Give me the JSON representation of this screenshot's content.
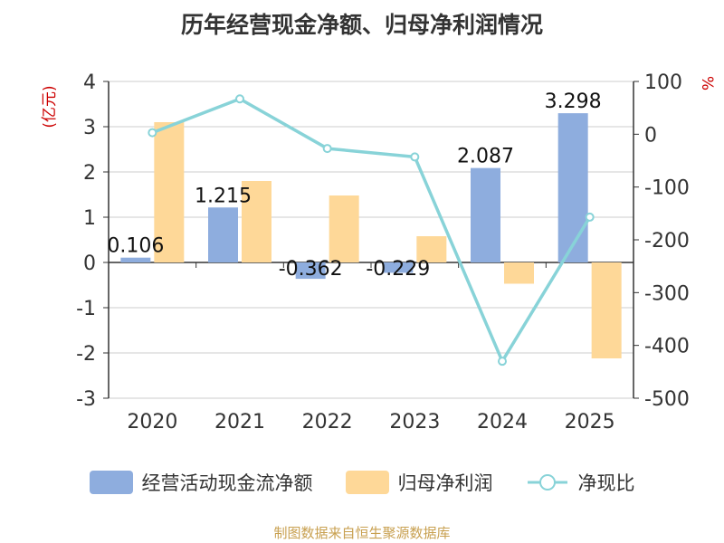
{
  "title": "历年经营现金净额、归母净利润情况",
  "source": "制图数据来自恒生聚源数据库",
  "colors": {
    "cash_flow": "#8eadde",
    "net_profit": "#fed898",
    "ratio": "#88d3d8",
    "axis_unit": "#cc0000"
  },
  "chart_data": {
    "type": "bar",
    "categories": [
      "2020",
      "2021",
      "2022",
      "2023",
      "2024",
      "2025"
    ],
    "series": [
      {
        "name": "经营活动现金流净额",
        "type": "bar",
        "axis": "left",
        "values": [
          0.106,
          1.215,
          -0.362,
          -0.229,
          2.087,
          3.298
        ],
        "data_labels": [
          "0.106",
          "1.215",
          "-0.362",
          "-0.229",
          "2.087",
          "3.298"
        ]
      },
      {
        "name": "归母净利润",
        "type": "bar",
        "axis": "left",
        "values": [
          3.1,
          1.8,
          1.48,
          0.58,
          -0.47,
          -2.12
        ]
      },
      {
        "name": "净现比",
        "type": "line",
        "axis": "right",
        "values": [
          3,
          67,
          -27,
          -43,
          -430,
          -157
        ]
      }
    ],
    "left_axis": {
      "label": "(亿元)",
      "ylim": [
        -3,
        4
      ],
      "ticks": [
        "4",
        "3",
        "2",
        "1",
        "0",
        "-1",
        "-2",
        "-3"
      ]
    },
    "right_axis": {
      "label": "%",
      "ylim": [
        -500,
        100
      ],
      "ticks": [
        "100",
        "0",
        "-100",
        "-200",
        "-300",
        "-400",
        "-500"
      ]
    }
  }
}
